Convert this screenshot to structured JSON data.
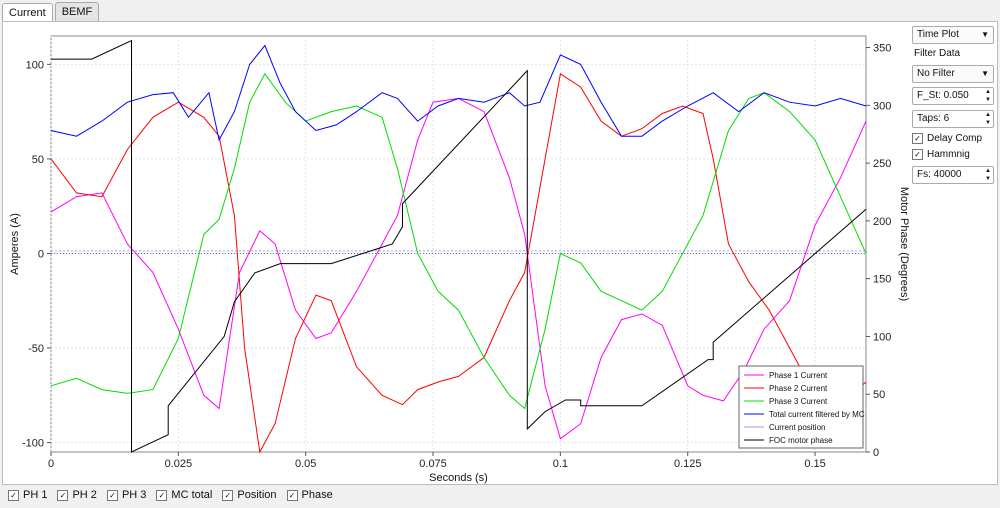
{
  "tabs": [
    {
      "label": "Current"
    },
    {
      "label": "BEMF"
    }
  ],
  "side": {
    "plot_mode": "Time Plot",
    "filter_label": "Filter Data",
    "filter": "No Filter",
    "f_st": "F_St: 0.050",
    "taps": "Taps: 6",
    "delay_comp": "Delay Comp",
    "hamming": "Hammnig",
    "fs": "Fs: 40000"
  },
  "checks": [
    {
      "label": "PH 1"
    },
    {
      "label": "PH 2"
    },
    {
      "label": "PH 3"
    },
    {
      "label": "MC total"
    },
    {
      "label": "Position"
    },
    {
      "label": "Phase"
    }
  ],
  "chart_data": {
    "type": "line",
    "xlabel": "Seconds (s)",
    "ylabel": "Amperes (A)",
    "y2label": "Motor Phase (Degrees)",
    "xlim": [
      0,
      0.16
    ],
    "ylim": [
      -105,
      115
    ],
    "y2lim": [
      0,
      360
    ],
    "xticks": [
      0,
      0.025,
      0.05,
      0.075,
      0.1,
      0.125,
      0.15
    ],
    "xtick_labels": [
      "0",
      "0.025",
      "0.05",
      "0.075",
      "0.1",
      "0.125",
      "0.15"
    ],
    "yticks": [
      100,
      50,
      0,
      -50,
      -100
    ],
    "y2ticks": [
      350,
      300,
      250,
      200,
      150,
      100,
      50,
      0
    ],
    "grid": true,
    "legend_position": "bottom-right",
    "series": [
      {
        "name": "Phase 1 Current",
        "color": "#ff00ff",
        "axis": "y",
        "x": [
          0,
          0.005,
          0.01,
          0.015,
          0.02,
          0.025,
          0.03,
          0.033,
          0.037,
          0.041,
          0.044,
          0.048,
          0.052,
          0.055,
          0.06,
          0.065,
          0.068,
          0.072,
          0.075,
          0.08,
          0.085,
          0.09,
          0.093,
          0.097,
          0.1,
          0.104,
          0.108,
          0.112,
          0.116,
          0.12,
          0.125,
          0.128,
          0.132,
          0.136,
          0.14,
          0.145,
          0.15,
          0.155,
          0.16
        ],
        "y": [
          22,
          30,
          32,
          5,
          -10,
          -40,
          -75,
          -82,
          -10,
          12,
          5,
          -30,
          -45,
          -42,
          -20,
          5,
          20,
          60,
          80,
          82,
          75,
          40,
          10,
          -70,
          -98,
          -90,
          -55,
          -35,
          -32,
          -38,
          -70,
          -75,
          -78,
          -62,
          -40,
          -25,
          15,
          40,
          70
        ]
      },
      {
        "name": "Phase 2 Current",
        "color": "#ff0000",
        "axis": "y",
        "x": [
          0,
          0.005,
          0.01,
          0.015,
          0.02,
          0.025,
          0.03,
          0.033,
          0.036,
          0.038,
          0.041,
          0.044,
          0.048,
          0.052,
          0.055,
          0.06,
          0.065,
          0.069,
          0.072,
          0.076,
          0.08,
          0.085,
          0.09,
          0.093,
          0.097,
          0.1,
          0.104,
          0.108,
          0.112,
          0.116,
          0.12,
          0.124,
          0.128,
          0.13,
          0.133,
          0.137,
          0.141,
          0.145,
          0.15,
          0.155,
          0.16
        ],
        "y": [
          50,
          32,
          30,
          55,
          72,
          80,
          72,
          62,
          20,
          -50,
          -105,
          -90,
          -45,
          -22,
          -25,
          -60,
          -75,
          -80,
          -72,
          -68,
          -65,
          -55,
          -25,
          -10,
          50,
          95,
          88,
          70,
          62,
          66,
          74,
          78,
          74,
          50,
          5,
          -15,
          -30,
          -50,
          -75,
          -80,
          -68
        ]
      },
      {
        "name": "Phase 3 Current",
        "color": "#00dd00",
        "axis": "y",
        "x": [
          0,
          0.005,
          0.01,
          0.015,
          0.02,
          0.025,
          0.03,
          0.033,
          0.036,
          0.039,
          0.042,
          0.046,
          0.05,
          0.055,
          0.06,
          0.065,
          0.068,
          0.072,
          0.076,
          0.08,
          0.085,
          0.09,
          0.093,
          0.097,
          0.1,
          0.104,
          0.108,
          0.112,
          0.116,
          0.12,
          0.124,
          0.128,
          0.133,
          0.137,
          0.14,
          0.145,
          0.15,
          0.155,
          0.16
        ],
        "y": [
          -70,
          -66,
          -72,
          -74,
          -72,
          -45,
          10,
          18,
          45,
          80,
          95,
          80,
          70,
          75,
          78,
          72,
          45,
          0,
          -20,
          -30,
          -55,
          -75,
          -82,
          -40,
          0,
          -5,
          -20,
          -25,
          -30,
          -20,
          0,
          20,
          65,
          82,
          85,
          75,
          60,
          30,
          0
        ]
      },
      {
        "name": "Total current filtered by MC",
        "color": "#0000ff",
        "axis": "y",
        "x": [
          0,
          0.005,
          0.01,
          0.015,
          0.02,
          0.024,
          0.027,
          0.031,
          0.033,
          0.036,
          0.039,
          0.042,
          0.045,
          0.048,
          0.052,
          0.056,
          0.06,
          0.065,
          0.068,
          0.072,
          0.076,
          0.08,
          0.085,
          0.09,
          0.093,
          0.096,
          0.1,
          0.104,
          0.108,
          0.112,
          0.116,
          0.12,
          0.125,
          0.13,
          0.135,
          0.14,
          0.145,
          0.15,
          0.155,
          0.16
        ],
        "y": [
          65,
          62,
          70,
          80,
          84,
          85,
          72,
          85,
          60,
          75,
          100,
          110,
          90,
          75,
          65,
          68,
          75,
          85,
          82,
          70,
          78,
          82,
          80,
          85,
          78,
          80,
          105,
          100,
          80,
          62,
          62,
          70,
          78,
          85,
          75,
          85,
          80,
          78,
          82,
          78
        ]
      },
      {
        "name": "Current position",
        "color": "#9999ff",
        "axis": "y2",
        "x": [
          0,
          0.16
        ],
        "y": [
          174,
          174
        ]
      },
      {
        "name": "FOC motor phase",
        "color": "#000000",
        "axis": "y2",
        "step": true,
        "x": [
          0,
          0.008,
          0.0158,
          0.0158,
          0.023,
          0.023,
          0.034,
          0.036,
          0.04,
          0.045,
          0.045,
          0.055,
          0.067,
          0.069,
          0.069,
          0.0935,
          0.0935,
          0.097,
          0.101,
          0.104,
          0.104,
          0.116,
          0.129,
          0.13,
          0.13,
          0.16
        ],
        "y": [
          340,
          340,
          356,
          0,
          15,
          40,
          100,
          130,
          155,
          163,
          163,
          163,
          180,
          195,
          215,
          330,
          20,
          35,
          45,
          45,
          40,
          40,
          80,
          80,
          95,
          210
        ]
      }
    ]
  }
}
